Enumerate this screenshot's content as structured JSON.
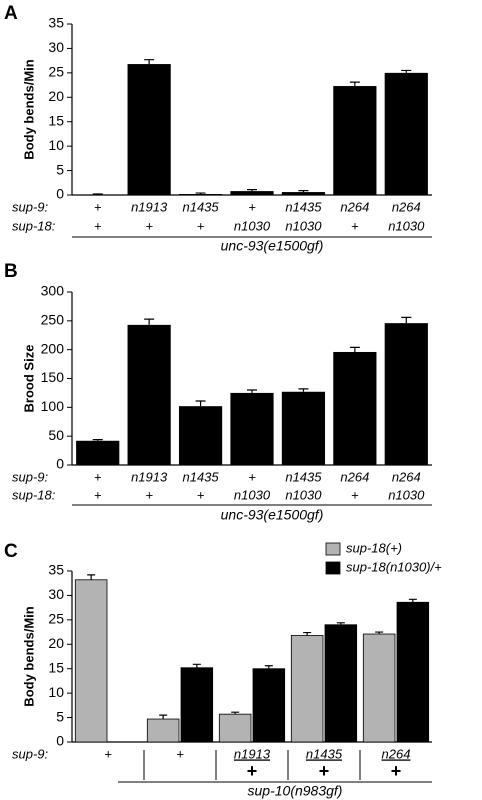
{
  "chart_data": [
    {
      "type": "bar",
      "panel": "A",
      "y_label": "Body bends/Min",
      "ylim": [
        0,
        35
      ],
      "yticks": [
        0,
        5,
        10,
        15,
        20,
        25,
        30,
        35
      ],
      "values": [
        0.1,
        26.8,
        0.2,
        0.8,
        0.6,
        22.3,
        25.0
      ],
      "errors": [
        0.1,
        0.9,
        0.2,
        0.3,
        0.3,
        0.8,
        0.5
      ],
      "color": "#000000",
      "row_labels": [
        "sup-9:",
        "sup-18:"
      ],
      "rows": [
        [
          "+",
          "n1913",
          "n1435",
          "+",
          "n1435",
          "n264",
          "n264"
        ],
        [
          "+",
          "+",
          "+",
          "n1030",
          "n1030",
          "+",
          "n1030"
        ]
      ],
      "group_label": "unc-93(e1500gf)"
    },
    {
      "type": "bar",
      "panel": "B",
      "y_label": "Brood Size",
      "ylim": [
        0,
        300
      ],
      "yticks": [
        0,
        50,
        100,
        150,
        200,
        250,
        300
      ],
      "values": [
        42,
        243,
        102,
        125,
        127,
        196,
        246
      ],
      "errors": [
        2,
        10,
        9,
        5,
        5,
        8,
        10
      ],
      "color": "#000000",
      "row_labels": [
        "sup-9:",
        "sup-18:"
      ],
      "rows": [
        [
          "+",
          "n1913",
          "n1435",
          "+",
          "n1435",
          "n264",
          "n264"
        ],
        [
          "+",
          "+",
          "+",
          "n1030",
          "n1030",
          "+",
          "n1030"
        ]
      ],
      "group_label": "unc-93(e1500gf)"
    },
    {
      "type": "grouped_bar",
      "panel": "C",
      "y_label": "Body bends/Min",
      "ylim": [
        0,
        35
      ],
      "yticks": [
        0,
        5,
        10,
        15,
        20,
        25,
        30,
        35
      ],
      "series": [
        {
          "name": "sup-18(+)",
          "color": "#b3b3b3",
          "values": [
            33.2,
            4.7,
            5.7,
            21.8,
            22.1
          ],
          "errors": [
            1.0,
            0.8,
            0.4,
            0.6,
            0.4
          ]
        },
        {
          "name": "sup-18(n1030)/+",
          "color": "#000000",
          "values": [
            null,
            15.2,
            15.0,
            24.0,
            28.6
          ],
          "errors": [
            null,
            0.7,
            0.6,
            0.4,
            0.6
          ]
        }
      ],
      "row_labels": [
        "sup-9:"
      ],
      "rows": [
        [
          "+",
          "+",
          "n1913",
          "n1435",
          "n264"
        ],
        [
          null,
          null,
          "+",
          "+",
          "+"
        ]
      ],
      "group_label": "sup-10(n983gf)",
      "legend": "upper right"
    }
  ]
}
